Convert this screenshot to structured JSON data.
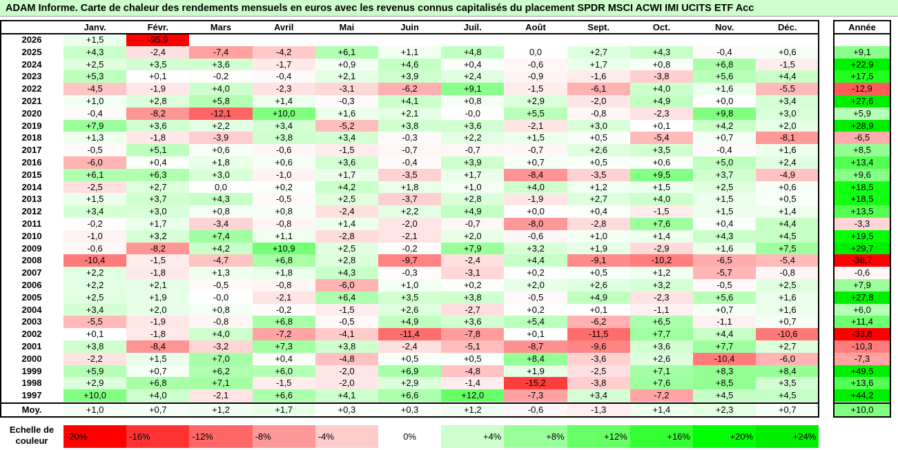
{
  "title": "ADAM Informe. Carte de chaleur des rendements mensuels en euros avec les revenus connus capitalisés du placement SPDR MSCI ACWI IMI UCITS ETF Acc",
  "chart_data": {
    "type": "heatmap",
    "months": [
      "Janv.",
      "Févr.",
      "Mars",
      "Avril",
      "Mai",
      "Juin",
      "Juil.",
      "Août",
      "Sept.",
      "Oct.",
      "Nov.",
      "Déc."
    ],
    "annual_header": "Année",
    "rows": [
      {
        "year": "2026",
        "months": [
          "+1,5",
          "-95,9",
          "",
          "",
          "",
          "",
          "",
          "",
          "",
          "",
          "",
          ""
        ],
        "annual": ""
      },
      {
        "year": "2025",
        "months": [
          "+4,3",
          "-2,4",
          "-7,4",
          "-4,2",
          "+6,1",
          "+1,1",
          "+4,8",
          "0,0",
          "+2,7",
          "+4,3",
          "-0,4",
          "+0,6"
        ],
        "annual": "+9,1"
      },
      {
        "year": "2024",
        "months": [
          "+2,5",
          "+3,5",
          "+3,6",
          "-1,7",
          "+0,9",
          "+4,6",
          "+0,4",
          "-0,6",
          "+1,7",
          "+0,8",
          "+6,8",
          "-1,5"
        ],
        "annual": "+22,9"
      },
      {
        "year": "2023",
        "months": [
          "+5,3",
          "+0,1",
          "-0,2",
          "-0,4",
          "+2,1",
          "+3,9",
          "+2,4",
          "-0,9",
          "-1,6",
          "-3,8",
          "+5,6",
          "+4,4"
        ],
        "annual": "+17,5"
      },
      {
        "year": "2022",
        "months": [
          "-4,5",
          "-1,9",
          "+4,0",
          "-2,3",
          "-3,1",
          "-6,2",
          "+9,1",
          "-1,5",
          "-6,1",
          "+4,0",
          "+1,6",
          "-5,5"
        ],
        "annual": "-12,9"
      },
      {
        "year": "2021",
        "months": [
          "+1,0",
          "+2,8",
          "+5,8",
          "+1,4",
          "-0,3",
          "+4,1",
          "+0,8",
          "+2,9",
          "-2,0",
          "+4,9",
          "+0,0",
          "+3,4"
        ],
        "annual": "+27,6"
      },
      {
        "year": "2020",
        "months": [
          "-0,4",
          "-8,2",
          "-12,1",
          "+10,0",
          "+1,6",
          "+2,1",
          "-0,0",
          "+5,5",
          "-0,8",
          "-2,3",
          "+9,8",
          "+3,0"
        ],
        "annual": "+5,9"
      },
      {
        "year": "2019",
        "months": [
          "+7,9",
          "+3,6",
          "+2,2",
          "+3,4",
          "-5,2",
          "+3,8",
          "+3,6",
          "-2,1",
          "+3,0",
          "+0,1",
          "+4,2",
          "+2,0"
        ],
        "annual": "+28,9"
      },
      {
        "year": "2018",
        "months": [
          "+1,3",
          "-1,8",
          "-3,9",
          "+3,8",
          "+3,4",
          "-0,3",
          "+2,2",
          "+1,5",
          "+0,5",
          "-5,4",
          "+0,7",
          "-8,1"
        ],
        "annual": "-6,5"
      },
      {
        "year": "2017",
        "months": [
          "-0,5",
          "+5,1",
          "+0,6",
          "-0,6",
          "-1,5",
          "-0,7",
          "-0,7",
          "-0,7",
          "+2,6",
          "+3,5",
          "-0,4",
          "+1,6"
        ],
        "annual": "+8,5"
      },
      {
        "year": "2016",
        "months": [
          "-6,0",
          "+0,4",
          "+1,8",
          "+0,6",
          "+3,6",
          "-0,4",
          "+3,9",
          "+0,7",
          "+0,5",
          "+0,6",
          "+5,0",
          "+2,4"
        ],
        "annual": "+13,4"
      },
      {
        "year": "2015",
        "months": [
          "+6,1",
          "+6,3",
          "+3,0",
          "-1,0",
          "+1,7",
          "-3,5",
          "+1,7",
          "-8,4",
          "-3,5",
          "+9,5",
          "+3,7",
          "-4,9"
        ],
        "annual": "+9,6"
      },
      {
        "year": "2014",
        "months": [
          "-2,5",
          "+2,7",
          "0,0",
          "+0,2",
          "+4,2",
          "+1,8",
          "+1,0",
          "+4,0",
          "+1,2",
          "+1,5",
          "+2,5",
          "+0,6"
        ],
        "annual": "+18,5"
      },
      {
        "year": "2013",
        "months": [
          "+1,5",
          "+3,7",
          "+4,3",
          "-0,5",
          "+2,5",
          "-3,7",
          "+2,8",
          "-1,9",
          "+2,7",
          "+4,0",
          "+1,5",
          "+0,5"
        ],
        "annual": "+18,5"
      },
      {
        "year": "2012",
        "months": [
          "+3,4",
          "+3,0",
          "+0,8",
          "+0,8",
          "-2,4",
          "+2,2",
          "+4,9",
          "+0,0",
          "+0,4",
          "-1,5",
          "+1,5",
          "+1,4"
        ],
        "annual": "+13,5"
      },
      {
        "year": "2011",
        "months": [
          "-0,2",
          "+1,7",
          "-3,4",
          "-0,8",
          "+1,4",
          "-2,0",
          "-0,7",
          "-8,0",
          "-2,8",
          "+7,6",
          "+0,4",
          "+4,4"
        ],
        "annual": "-3,3"
      },
      {
        "year": "2010",
        "months": [
          "-1,0",
          "+3,2",
          "+7,4",
          "+1,1",
          "-2,8",
          "-2,1",
          "+2,0",
          "-0,6",
          "+1,0",
          "+1,4",
          "+4,3",
          "+4,5"
        ],
        "annual": "+19,5"
      },
      {
        "year": "2009",
        "months": [
          "-0,6",
          "-8,2",
          "+4,2",
          "+10,9",
          "+2,5",
          "-0,2",
          "+7,9",
          "+3,2",
          "+1,9",
          "-2,9",
          "+1,6",
          "+7,5"
        ],
        "annual": "+29,7"
      },
      {
        "year": "2008",
        "months": [
          "-10,4",
          "-1,5",
          "-4,7",
          "+6,8",
          "+2,8",
          "-9,7",
          "-2,4",
          "+4,4",
          "-9,1",
          "-10,2",
          "-6,5",
          "-5,4"
        ],
        "annual": "-38,7"
      },
      {
        "year": "2007",
        "months": [
          "+2,2",
          "-1,8",
          "+1,3",
          "+1,8",
          "+4,3",
          "-0,3",
          "-3,1",
          "+0,2",
          "+0,5",
          "+1,2",
          "-5,7",
          "-0,8"
        ],
        "annual": "-0,6"
      },
      {
        "year": "2006",
        "months": [
          "+2,2",
          "+2,1",
          "-0,5",
          "-0,8",
          "-6,0",
          "+1,0",
          "+0,2",
          "+2,0",
          "+2,6",
          "+3,2",
          "-0,5",
          "+2,5"
        ],
        "annual": "+7,9"
      },
      {
        "year": "2005",
        "months": [
          "+2,5",
          "+1,9",
          "-0,0",
          "-2,1",
          "+6,4",
          "+3,5",
          "+3,8",
          "-0,5",
          "+4,9",
          "-2,3",
          "+5,6",
          "+1,6"
        ],
        "annual": "+27,8"
      },
      {
        "year": "2004",
        "months": [
          "+3,4",
          "+2,0",
          "+0,8",
          "-0,2",
          "-1,5",
          "+2,6",
          "-2,7",
          "+0,2",
          "+0,1",
          "-1,1",
          "+0,7",
          "+1,6"
        ],
        "annual": "+6,0"
      },
      {
        "year": "2003",
        "months": [
          "-5,5",
          "-1,9",
          "-0,8",
          "+6,8",
          "-0,5",
          "+4,9",
          "+3,6",
          "+5,4",
          "-6,2",
          "+6,5",
          "-1,1",
          "+0,7"
        ],
        "annual": "+11,4"
      },
      {
        "year": "2002",
        "months": [
          "+0,1",
          "-1,8",
          "+4,0",
          "-7,2",
          "-4,1",
          "-11,4",
          "-7,8",
          "+0,1",
          "-11,5",
          "+7,7",
          "+4,4",
          "-10,6"
        ],
        "annual": "-33,8"
      },
      {
        "year": "2001",
        "months": [
          "+3,8",
          "-8,4",
          "-3,2",
          "+7,3",
          "+3,8",
          "-2,4",
          "-5,1",
          "-8,7",
          "-9,6",
          "+3,6",
          "+7,7",
          "+2,7"
        ],
        "annual": "-10,3"
      },
      {
        "year": "2000",
        "months": [
          "-2,2",
          "+1,5",
          "+7,0",
          "+0,4",
          "-4,8",
          "+0,5",
          "+0,5",
          "+8,4",
          "-3,6",
          "+2,6",
          "-10,4",
          "-6,0"
        ],
        "annual": "-7,3"
      },
      {
        "year": "1999",
        "months": [
          "+5,9",
          "+0,7",
          "+6,2",
          "+6,0",
          "-2,0",
          "+6,9",
          "-4,8",
          "+1,9",
          "-2,5",
          "+7,1",
          "+8,3",
          "+8,4"
        ],
        "annual": "+49,5"
      },
      {
        "year": "1998",
        "months": [
          "+2,9",
          "+6,8",
          "+7,1",
          "-1,5",
          "-2,0",
          "+2,9",
          "-1,4",
          "-15,2",
          "-3,8",
          "+7,6",
          "+8,5",
          "+3,5"
        ],
        "annual": "+13,6"
      },
      {
        "year": "1997",
        "months": [
          "+10,0",
          "+4,0",
          "-2,1",
          "+6,6",
          "+4,1",
          "+6,6",
          "+12,0",
          "-7,3",
          "+3,4",
          "-7,2",
          "+4,5",
          "+4,5"
        ],
        "annual": "+44,2"
      }
    ],
    "average": {
      "label": "Moy.",
      "months": [
        "+1,0",
        "+0,7",
        "+1,2",
        "+1,7",
        "+0,3",
        "+0,3",
        "+1,2",
        "-0,6",
        "-1,3",
        "+1,4",
        "+2,3",
        "+0,7"
      ],
      "annual": "+10,0"
    },
    "scale": {
      "label": "Echelle de couleur",
      "steps": [
        {
          "label": "-20%",
          "value": -20,
          "color": "#ff0000"
        },
        {
          "label": "-16%",
          "value": -16,
          "color": "#ff3333"
        },
        {
          "label": "-12%",
          "value": -12,
          "color": "#ff6666"
        },
        {
          "label": "-8%",
          "value": -8,
          "color": "#ff9999"
        },
        {
          "label": "-4%",
          "value": -4,
          "color": "#ffcccc"
        },
        {
          "label": "0%",
          "value": 0,
          "color": "#ffffff"
        },
        {
          "label": "+4%",
          "value": 4,
          "color": "#ccffcc"
        },
        {
          "label": "+8%",
          "value": 8,
          "color": "#99ff99"
        },
        {
          "label": "+12%",
          "value": 12,
          "color": "#66ff66"
        },
        {
          "label": "+16%",
          "value": 16,
          "color": "#33ff33"
        },
        {
          "label": "+20%",
          "value": 20,
          "color": "#00ff00"
        },
        {
          "label": "+24%",
          "value": 24,
          "color": "#00ee00"
        }
      ]
    }
  }
}
